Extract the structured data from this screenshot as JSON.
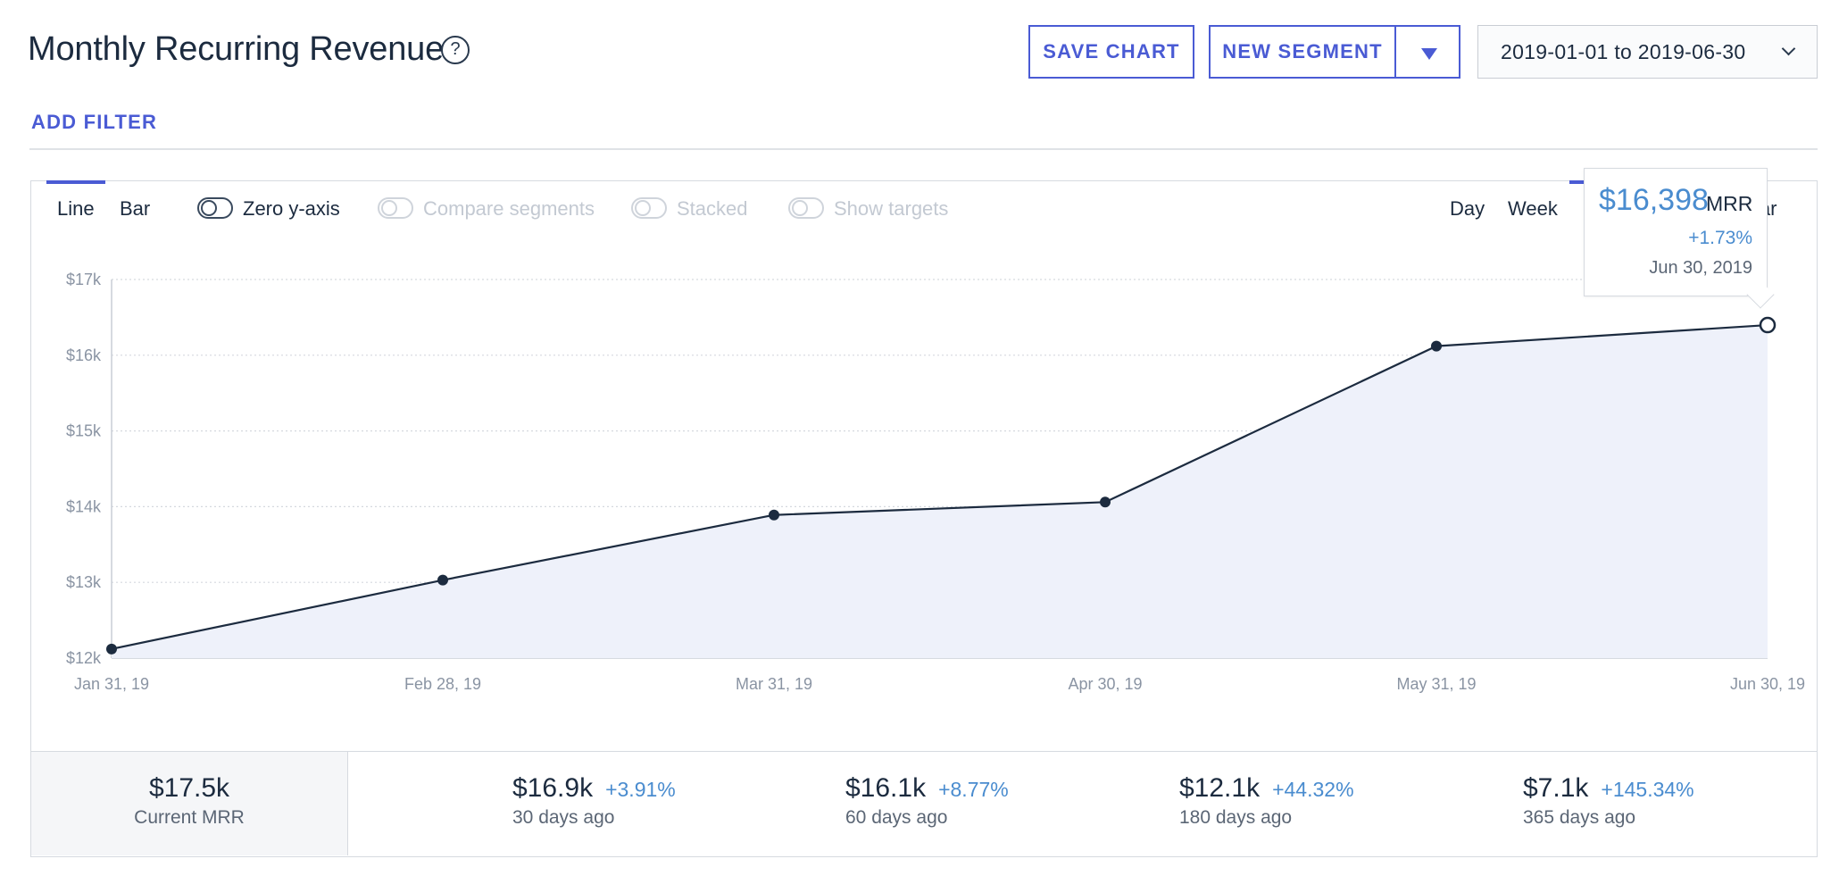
{
  "header": {
    "title": "Monthly Recurring Revenue",
    "help_glyph": "?",
    "save_label": "SAVE CHART",
    "segment_label": "NEW SEGMENT",
    "date_range": "2019-01-01 to 2019-06-30",
    "add_filter_label": "ADD FILTER"
  },
  "controls": {
    "line_label": "Line",
    "bar_label": "Bar",
    "zero_y_axis_label": "Zero y-axis",
    "compare_segments_label": "Compare segments",
    "stacked_label": "Stacked",
    "show_targets_label": "Show targets",
    "day_label": "Day",
    "week_label": "Week",
    "year_label": "Year"
  },
  "tooltip": {
    "value": "$16,398",
    "unit": "MRR",
    "change": "+1.73%",
    "date": "Jun 30, 2019"
  },
  "chart_data": {
    "type": "area",
    "x": [
      "Jan 31, 19",
      "Feb 28, 19",
      "Mar 31, 19",
      "Apr 30, 19",
      "May 31, 19",
      "Jun 30, 19"
    ],
    "series": [
      {
        "values": [
          12120,
          13030,
          13890,
          14060,
          16120,
          16398
        ]
      }
    ],
    "y_ticks": [
      "$12k",
      "$13k",
      "$14k",
      "$15k",
      "$16k",
      "$17k"
    ],
    "ylim": [
      12000,
      17000
    ],
    "grid": true,
    "colors": {
      "line": "#1c2b3f",
      "fill": "#eef1fa",
      "grid": "#d5d9df",
      "tick_text": "#8a94a3"
    }
  },
  "stats": {
    "current": {
      "value": "$17.5k",
      "label": "Current MRR"
    },
    "items": [
      {
        "value": "$16.9k",
        "pct": "+3.91%",
        "label": "30 days ago"
      },
      {
        "value": "$16.1k",
        "pct": "+8.77%",
        "label": "60 days ago"
      },
      {
        "value": "$12.1k",
        "pct": "+44.32%",
        "label": "180 days ago"
      },
      {
        "value": "$7.1k",
        "pct": "+145.34%",
        "label": "365 days ago"
      }
    ]
  },
  "colors": {
    "accent": "#4a5bd4",
    "highlight": "#4a8ccf",
    "text": "#1c2b3f"
  }
}
